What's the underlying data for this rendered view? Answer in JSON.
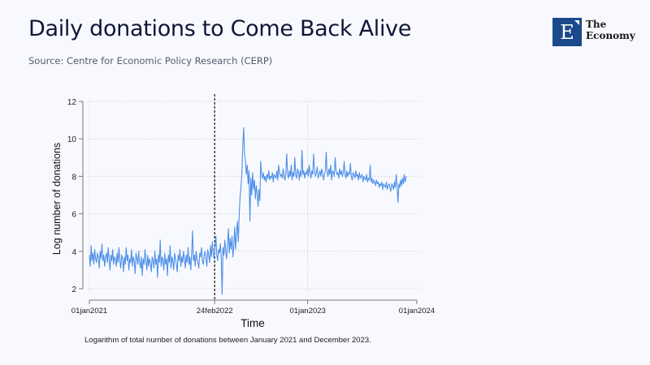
{
  "header": {
    "title": "Daily donations to Come Back Alive",
    "source": "Source: Centre for Economic Policy Research (CERP)"
  },
  "logo": {
    "letter": "E",
    "line1": "The",
    "line2": "Economy",
    "brand_color": "#1b4a8a"
  },
  "caption": "Logarithm of total number of donations between January 2021 and December 2023.",
  "chart_data": {
    "type": "line",
    "title": "Daily donations to Come Back Alive",
    "xlabel": "Time",
    "ylabel": "Log number of donations",
    "ylim": [
      2,
      12
    ],
    "xlim_days": [
      0,
      1095
    ],
    "yticks": [
      2,
      4,
      6,
      8,
      10,
      12
    ],
    "xticks": [
      {
        "day": 0,
        "label": "01jan2021"
      },
      {
        "day": 419,
        "label": "24feb2022"
      },
      {
        "day": 730,
        "label": "01jan2023"
      },
      {
        "day": 1095,
        "label": "01jan2024"
      }
    ],
    "vline": {
      "day": 419,
      "label": "24feb2022",
      "style": "dashed"
    },
    "grid": true,
    "legend": "none",
    "series_color": "#4d8fe8",
    "series": [
      {
        "name": "Log number of donations",
        "x_unit": "days since 01jan2021",
        "x_step": 3,
        "values": [
          3.8,
          3.2,
          4.3,
          3.5,
          3.9,
          3.3,
          4.1,
          3.6,
          3.4,
          3.9,
          3.7,
          3.1,
          4.0,
          3.6,
          4.4,
          3.5,
          3.8,
          3.2,
          3.7,
          3.9,
          3.4,
          4.2,
          3.6,
          3.0,
          3.8,
          3.5,
          4.1,
          3.3,
          3.7,
          3.6,
          3.2,
          3.9,
          3.4,
          4.2,
          3.5,
          3.1,
          3.8,
          3.6,
          2.9,
          3.7,
          3.3,
          4.2,
          3.5,
          3.8,
          3.0,
          3.6,
          3.4,
          4.1,
          3.2,
          3.7,
          3.5,
          2.8,
          3.9,
          3.6,
          3.3,
          4.0,
          3.4,
          3.1,
          3.7,
          2.7,
          3.6,
          3.3,
          4.1,
          3.5,
          3.0,
          3.8,
          3.2,
          3.6,
          3.4,
          2.9,
          3.7,
          3.5,
          3.1,
          4.0,
          3.3,
          3.6,
          2.6,
          3.8,
          3.4,
          4.6,
          3.2,
          3.7,
          3.5,
          3.0,
          3.9,
          3.3,
          3.6,
          2.7,
          3.8,
          3.4,
          4.3,
          3.1,
          3.7,
          3.5,
          3.0,
          3.9,
          3.6,
          3.3,
          2.9,
          3.8,
          3.5,
          4.1,
          3.2,
          3.7,
          3.4,
          4.0,
          3.6,
          3.1,
          3.8,
          3.4,
          4.2,
          3.3,
          3.7,
          3.0,
          3.9,
          5.1,
          3.5,
          3.8,
          3.2,
          4.0,
          3.6,
          3.4,
          3.1,
          3.9,
          3.7,
          4.2,
          3.5,
          3.3,
          3.8,
          4.0,
          3.6,
          3.2,
          4.1,
          3.8,
          3.4,
          4.3,
          3.7,
          4.5,
          3.9,
          3.6,
          4.2,
          4.8,
          3.8,
          3.5,
          4.1,
          3.9,
          4.4,
          3.7,
          1.7,
          4.2,
          3.8,
          4.6,
          4.0,
          3.6,
          4.4,
          5.2,
          3.9,
          4.7,
          4.1,
          4.8,
          3.7,
          4.3,
          5.3,
          4.1,
          4.9,
          5.6,
          4.5,
          6.0,
          6.9,
          7.4,
          8.2,
          9.6,
          10.6,
          9.2,
          8.8,
          8.1,
          8.6,
          7.6,
          8.3,
          5.6,
          7.9,
          7.0,
          8.2,
          7.3,
          7.8,
          6.8,
          7.5,
          7.1,
          6.4,
          7.3,
          6.7,
          8.8,
          8.1,
          7.9,
          8.2,
          7.8,
          8.0,
          7.7,
          8.1,
          7.9,
          8.3,
          7.8,
          8.0,
          7.9,
          8.2,
          7.7,
          8.1,
          8.0,
          7.9,
          8.3,
          7.8,
          8.6,
          8.2,
          8.0,
          8.1,
          7.9,
          8.4,
          8.0,
          7.8,
          8.2,
          9.2,
          8.1,
          7.9,
          8.3,
          8.0,
          8.6,
          7.8,
          8.2,
          8.0,
          9.0,
          8.1,
          7.9,
          8.4,
          8.2,
          7.8,
          8.3,
          8.0,
          9.4,
          8.1,
          8.3,
          7.9,
          8.2,
          8.1,
          8.4,
          8.0,
          8.6,
          8.2,
          7.9,
          8.3,
          8.1,
          9.2,
          8.3,
          8.0,
          8.2,
          8.5,
          7.9,
          8.1,
          8.3,
          8.0,
          8.4,
          8.2,
          7.8,
          8.1,
          8.3,
          9.3,
          8.2,
          8.0,
          8.4,
          8.1,
          8.6,
          7.8,
          8.3,
          8.2,
          8.0,
          9.0,
          8.3,
          8.1,
          8.2,
          7.9,
          8.4,
          8.1,
          8.3,
          8.0,
          8.2,
          8.8,
          8.1,
          7.9,
          8.3,
          8.0,
          8.2,
          8.1,
          8.7,
          8.0,
          7.8,
          8.2,
          8.1,
          7.9,
          8.3,
          8.0,
          8.1,
          7.8,
          8.2,
          7.9,
          8.0,
          8.1,
          7.7,
          8.0,
          7.9,
          7.8,
          8.1,
          7.7,
          7.9,
          7.8,
          8.6,
          7.7,
          7.9,
          7.6,
          7.8,
          7.7,
          7.5,
          7.8,
          7.6,
          7.7,
          7.4,
          7.6,
          7.5,
          7.7,
          7.3,
          7.6,
          7.5,
          7.4,
          7.7,
          7.3,
          7.5,
          7.6,
          7.4,
          7.2,
          7.6,
          7.5,
          7.3,
          7.7,
          7.4,
          8.1,
          7.5,
          6.6,
          7.6,
          7.4,
          7.8,
          7.5,
          7.9,
          7.6,
          8.1,
          7.7,
          8.0
        ]
      }
    ]
  }
}
